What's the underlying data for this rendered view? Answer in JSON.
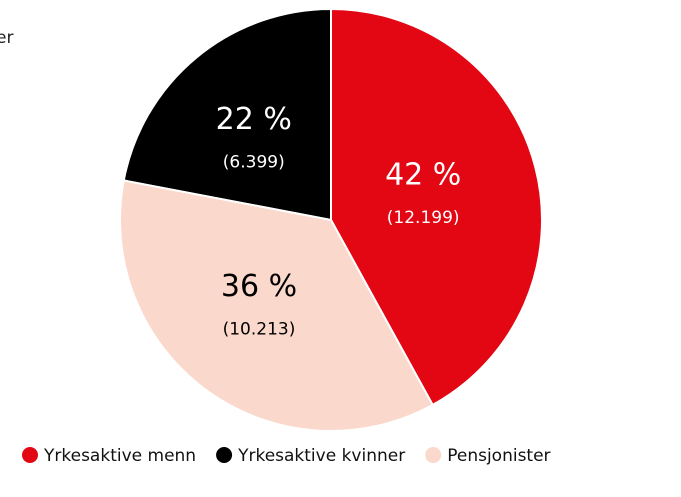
{
  "chart_data": {
    "type": "pie",
    "title": "er",
    "categories": [
      "Yrkesaktive menn",
      "Yrkesaktive kvinner",
      "Pensjonister"
    ],
    "values": [
      42,
      22,
      36
    ],
    "value_labels": [
      "42 %",
      "22 %",
      "36 %"
    ],
    "counts": [
      12199,
      6399,
      10213
    ],
    "count_labels": [
      "(12.199)",
      "(6.399)",
      "(10.213)"
    ],
    "colors": [
      "#e30613",
      "#000000",
      "#fad8cb"
    ],
    "label_colors": [
      "#ffffff",
      "#ffffff",
      "#000000"
    ],
    "legend": "bottom"
  }
}
